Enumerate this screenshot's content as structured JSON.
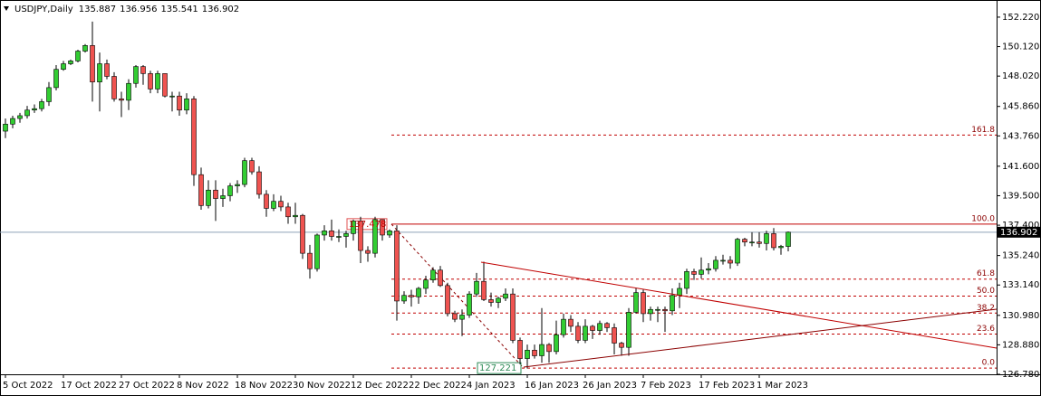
{
  "chart_data": {
    "type": "candlestick",
    "title": "USDJPY,Daily",
    "header_values": [
      135.887,
      136.956,
      135.541,
      136.902
    ],
    "categories": [
      "5 Oct 2022",
      null,
      null,
      null,
      null,
      null,
      null,
      null,
      "17 Oct 2022",
      null,
      null,
      null,
      null,
      null,
      null,
      null,
      "27 Oct 2022",
      null,
      null,
      null,
      null,
      null,
      null,
      null,
      "8 Nov 2022",
      null,
      null,
      null,
      null,
      null,
      null,
      null,
      "18 Nov 2022",
      null,
      null,
      null,
      null,
      null,
      null,
      null,
      "30 Nov 2022",
      null,
      null,
      null,
      null,
      null,
      null,
      null,
      "12 Dec 2022",
      null,
      null,
      null,
      null,
      null,
      null,
      null,
      "22 Dec 2022",
      null,
      null,
      null,
      null,
      null,
      null,
      null,
      "4 Jan 2023",
      null,
      null,
      null,
      null,
      null,
      null,
      null,
      "16 Jan 2023",
      null,
      null,
      null,
      null,
      null,
      null,
      null,
      "26 Jan 2023",
      null,
      null,
      null,
      null,
      null,
      null,
      null,
      "7 Feb 2023",
      null,
      null,
      null,
      null,
      null,
      null,
      null,
      "17 Feb 2023",
      null,
      null,
      null,
      null,
      null,
      null,
      null,
      "1 Mar 2023",
      null,
      null,
      null,
      null
    ],
    "open": [
      144.1,
      144.6,
      145.0,
      145.2,
      145.6,
      145.7,
      146.2,
      147.2,
      148.5,
      148.9,
      149.1,
      149.8,
      150.2,
      147.6,
      148.9,
      148.0,
      146.4,
      146.3,
      147.5,
      148.7,
      148.2,
      147.1,
      148.2,
      146.6,
      146.6,
      145.6,
      146.4,
      141.0,
      138.8,
      139.9,
      139.3,
      139.5,
      140.2,
      140.3,
      142.0,
      141.2,
      139.6,
      138.6,
      139.1,
      138.7,
      138.0,
      138.1,
      135.4,
      134.3,
      136.7,
      137.0,
      136.6,
      136.6,
      136.8,
      137.7,
      135.6,
      135.4,
      137.8,
      136.7,
      137.0,
      132.0,
      132.4,
      132.3,
      132.9,
      133.5,
      134.2,
      133.1,
      131.1,
      130.7,
      131.0,
      132.5,
      133.4,
      132.1,
      131.9,
      132.2,
      132.5,
      129.2,
      127.9,
      128.5,
      128.1,
      128.9,
      128.4,
      129.6,
      130.7,
      130.2,
      129.2,
      130.2,
      129.9,
      130.4,
      130.1,
      129.0,
      128.7,
      131.2,
      132.6,
      131.1,
      131.4,
      131.4,
      131.3,
      132.4,
      132.9,
      134.1,
      133.9,
      134.2,
      134.3,
      134.9,
      134.9,
      134.7,
      136.4,
      136.2,
      136.2,
      136.1,
      136.8,
      135.8,
      135.887
    ],
    "high": [
      145.0,
      145.2,
      145.4,
      145.9,
      146.0,
      146.4,
      147.6,
      148.8,
      149.1,
      149.2,
      149.9,
      150.3,
      151.9,
      149.7,
      149.2,
      148.3,
      146.9,
      147.8,
      148.8,
      148.8,
      148.4,
      148.4,
      148.2,
      146.9,
      146.9,
      146.8,
      146.6,
      141.5,
      140.6,
      140.6,
      140.0,
      140.4,
      140.6,
      142.2,
      142.2,
      141.6,
      139.9,
      139.6,
      139.5,
      139.0,
      139.0,
      138.2,
      136.0,
      136.8,
      137.4,
      137.8,
      137.1,
      137.0,
      137.8,
      138.0,
      135.9,
      138.0,
      137.8,
      137.1,
      137.4,
      132.7,
      132.8,
      133.0,
      133.8,
      134.4,
      134.5,
      133.3,
      131.3,
      131.4,
      132.7,
      134.0,
      134.8,
      132.6,
      132.3,
      132.9,
      132.9,
      129.4,
      128.9,
      128.9,
      131.5,
      129.0,
      130.6,
      131.1,
      131.0,
      130.5,
      130.7,
      130.3,
      130.6,
      130.5,
      130.4,
      129.1,
      131.5,
      132.9,
      132.8,
      131.6,
      131.6,
      131.6,
      132.9,
      133.3,
      134.3,
      134.3,
      135.1,
      134.7,
      135.2,
      135.3,
      135.2,
      136.5,
      136.5,
      136.9,
      136.9,
      137.0,
      137.2,
      136.0,
      136.956
    ],
    "low": [
      143.6,
      144.3,
      144.7,
      145.0,
      145.4,
      145.5,
      145.9,
      147.0,
      148.4,
      148.8,
      149.0,
      149.7,
      146.2,
      145.5,
      147.8,
      146.2,
      145.1,
      145.6,
      147.2,
      147.4,
      146.8,
      146.8,
      146.5,
      145.5,
      145.2,
      145.3,
      140.2,
      138.5,
      138.6,
      137.7,
      138.7,
      139.1,
      139.7,
      140.1,
      141.0,
      139.3,
      138.0,
      138.4,
      138.4,
      137.5,
      137.5,
      135.0,
      133.6,
      134.1,
      136.3,
      136.3,
      136.2,
      135.8,
      136.3,
      134.7,
      134.8,
      135.1,
      136.3,
      136.5,
      130.6,
      131.8,
      131.6,
      131.8,
      132.5,
      133.3,
      133.0,
      130.9,
      130.5,
      129.5,
      130.8,
      132.3,
      132.0,
      131.6,
      131.5,
      132.0,
      129.0,
      127.5,
      127.2,
      127.9,
      127.6,
      127.6,
      128.2,
      129.4,
      129.8,
      129.0,
      129.0,
      129.3,
      129.6,
      129.8,
      128.2,
      128.1,
      128.1,
      131.1,
      130.5,
      130.6,
      130.5,
      129.8,
      131.0,
      131.5,
      132.5,
      133.5,
      133.6,
      133.9,
      134.1,
      134.6,
      134.3,
      134.5,
      135.9,
      135.9,
      135.8,
      135.6,
      135.6,
      135.3,
      135.541
    ],
    "close": [
      144.6,
      145.0,
      145.2,
      145.6,
      145.7,
      146.2,
      147.2,
      148.5,
      148.9,
      149.1,
      149.8,
      150.2,
      147.6,
      148.9,
      148.0,
      146.4,
      146.3,
      147.5,
      148.7,
      148.2,
      147.1,
      148.2,
      146.6,
      146.6,
      145.6,
      146.4,
      141.0,
      138.8,
      139.9,
      139.3,
      139.5,
      140.2,
      140.3,
      142.0,
      141.2,
      139.6,
      138.6,
      139.1,
      138.7,
      138.0,
      138.1,
      135.4,
      134.3,
      136.7,
      137.0,
      136.6,
      136.6,
      136.8,
      137.7,
      135.6,
      135.4,
      137.8,
      136.7,
      137.0,
      132.0,
      132.4,
      132.3,
      132.9,
      133.5,
      134.2,
      133.1,
      131.1,
      130.7,
      131.0,
      132.5,
      133.4,
      132.1,
      131.9,
      132.2,
      132.5,
      129.2,
      127.9,
      128.5,
      128.1,
      128.9,
      128.4,
      129.6,
      130.7,
      130.2,
      129.2,
      130.2,
      129.9,
      130.4,
      130.1,
      129.0,
      128.7,
      131.2,
      132.6,
      131.1,
      131.4,
      131.4,
      131.3,
      132.4,
      132.9,
      134.1,
      133.9,
      134.2,
      134.3,
      134.9,
      134.9,
      134.7,
      136.4,
      136.2,
      136.2,
      136.1,
      136.8,
      135.8,
      135.9,
      136.902
    ],
    "colors": {
      "up": "#32cd32",
      "down": "#ef5350"
    },
    "ylim": [
      126.78,
      153.44
    ],
    "yticks": [
      {
        "value": 152.22,
        "label": "152.220"
      },
      {
        "value": 150.12,
        "label": "150.120"
      },
      {
        "value": 148.02,
        "label": "148.020"
      },
      {
        "value": 145.86,
        "label": "145.860"
      },
      {
        "value": 143.76,
        "label": "143.760"
      },
      {
        "value": 141.6,
        "label": "141.600"
      },
      {
        "value": 139.5,
        "label": "139.500"
      },
      {
        "value": 137.4,
        "label": "137.400"
      },
      {
        "value": 135.24,
        "label": "135.240"
      },
      {
        "value": 133.14,
        "label": "133.140"
      },
      {
        "value": 130.98,
        "label": "130.980"
      },
      {
        "value": 128.88,
        "label": "128.880"
      },
      {
        "value": 126.78,
        "label": "126.780"
      }
    ],
    "current_price": 136.902,
    "fibonacci": {
      "high": 137.478,
      "low": {
        "value": 127.221,
        "label": "127.221"
      },
      "levels": [
        {
          "value": 161.8,
          "label": "161.8"
        },
        {
          "value": 100,
          "label": "100.0"
        },
        {
          "value": 61.8,
          "label": "61.8"
        },
        {
          "value": 50,
          "label": "50.0"
        },
        {
          "value": 38.2,
          "label": "38.2"
        },
        {
          "value": 23.6,
          "label": "23.6"
        },
        {
          "value": 0,
          "label": "0.0"
        }
      ]
    }
  }
}
